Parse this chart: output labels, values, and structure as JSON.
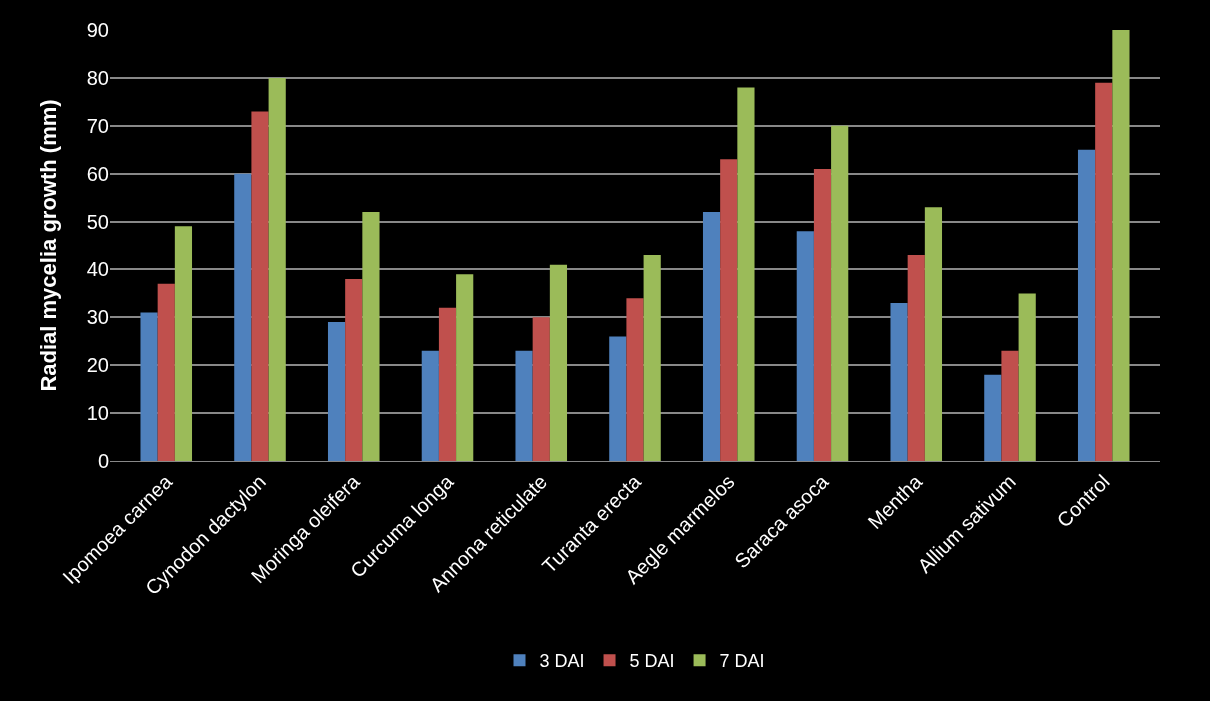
{
  "chart_data": {
    "type": "bar",
    "ylabel": "Radial mycelia growth (mm)",
    "categories": [
      "Ipomoea carnea",
      "Cynodon dactylon",
      "Moringa oleifera",
      "Curcuma longa",
      "Annona reticulate",
      "Turanta erecta",
      "Aegle marmelos",
      "Saraca asoca",
      "Mentha",
      "Allium sativum",
      "Control"
    ],
    "series": [
      {
        "name": "3 DAI",
        "color": "#4f81bd",
        "values": [
          31,
          60,
          29,
          23,
          23,
          26,
          52,
          48,
          33,
          18,
          65
        ]
      },
      {
        "name": "5 DAI",
        "color": "#c0504d",
        "values": [
          37,
          73,
          38,
          32,
          30,
          34,
          63,
          61,
          43,
          23,
          79
        ]
      },
      {
        "name": "7 DAI",
        "color": "#9bbb59",
        "values": [
          49,
          80,
          52,
          39,
          41,
          43,
          78,
          70,
          53,
          35,
          90
        ]
      }
    ],
    "ylim": [
      0,
      90
    ],
    "yticks": [
      0,
      10,
      20,
      30,
      40,
      50,
      60,
      70,
      80,
      90
    ],
    "grid": "y",
    "legend": "bottom"
  }
}
